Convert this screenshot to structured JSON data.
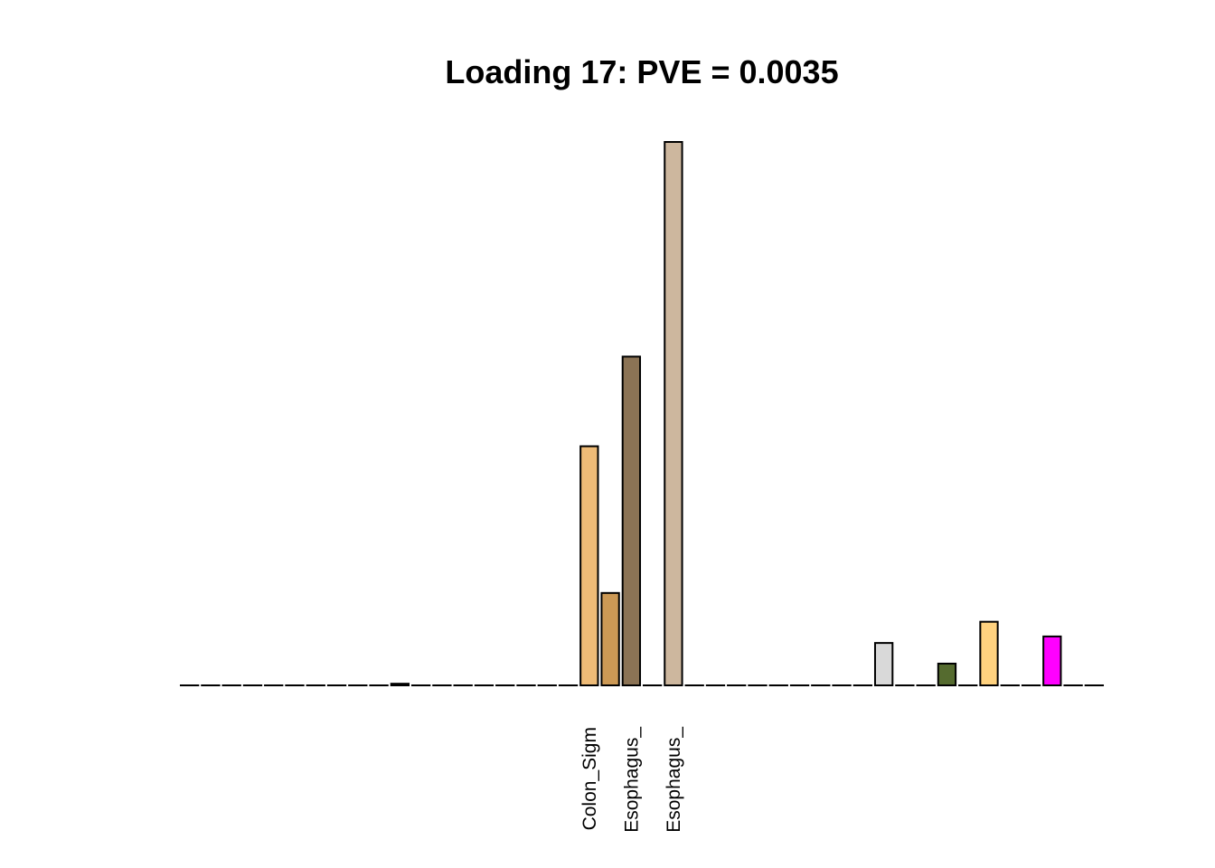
{
  "chart_data": {
    "type": "bar",
    "title": "Loading 17: PVE = 0.0035",
    "xlabel": "",
    "ylabel": "",
    "axes_visible": false,
    "grid": false,
    "n_bars": 44,
    "ylim": [
      0,
      1
    ],
    "values": [
      0,
      0,
      0,
      0,
      0,
      0,
      0,
      0,
      0,
      0,
      0.003,
      0,
      0,
      0,
      0,
      0,
      0,
      0,
      0,
      0.44,
      0.17,
      0.605,
      0,
      1.0,
      0,
      0,
      0,
      0,
      0,
      0,
      0,
      0,
      0,
      0.078,
      0,
      0,
      0.04,
      0,
      0.117,
      0,
      0,
      0.09,
      0,
      0
    ],
    "colors": [
      "#FFFFFF",
      "#FFFFFF",
      "#FFFFFF",
      "#FFFFFF",
      "#FFFFFF",
      "#FFFFFF",
      "#FFFFFF",
      "#FFFFFF",
      "#FFFFFF",
      "#FFFFFF",
      "#FFFFFF",
      "#FFFFFF",
      "#FFFFFF",
      "#FFFFFF",
      "#FFFFFF",
      "#FFFFFF",
      "#FFFFFF",
      "#FFFFFF",
      "#FFFFFF",
      "#EEBB77",
      "#CC9955",
      "#8B7355",
      "#FFFFFF",
      "#CDB79E",
      "#FFFFFF",
      "#FFFFFF",
      "#FFFFFF",
      "#FFFFFF",
      "#FFFFFF",
      "#FFFFFF",
      "#FFFFFF",
      "#FFFFFF",
      "#FFFFFF",
      "#D9D9D9",
      "#FFFFFF",
      "#FFFFFF",
      "#556B2F",
      "#FFFFFF",
      "#FFD27F",
      "#FFFFFF",
      "#FFFFFF",
      "#FF00FF",
      "#FFFFFF",
      "#FFFFFF"
    ],
    "tick_labels": [
      {
        "index": 19,
        "label": "Colon_Sigm"
      },
      {
        "index": 21,
        "label": "Esophagus_"
      },
      {
        "index": 23,
        "label": "Esophagus_"
      }
    ]
  }
}
